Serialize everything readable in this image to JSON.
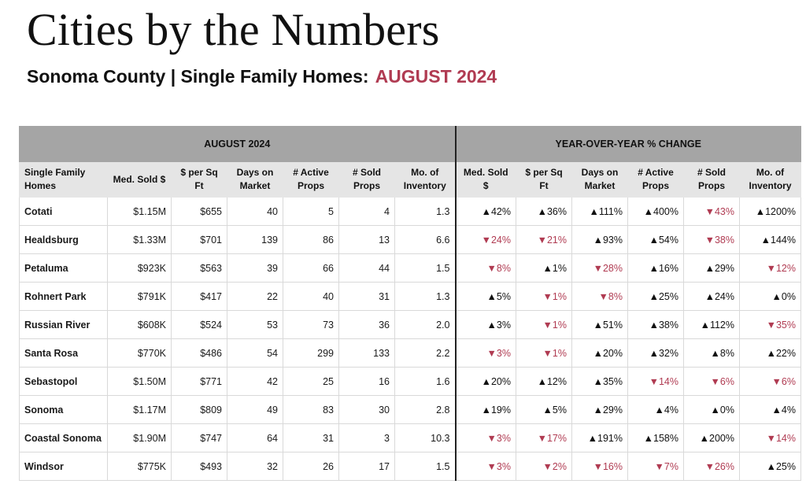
{
  "header": {
    "title": "Cities by the Numbers",
    "subtitle_main": "Sonoma County | Single Family Homes:",
    "subtitle_period": "AUGUST 2024"
  },
  "table": {
    "group_headers": [
      "AUGUST 2024",
      "YEAR-OVER-YEAR % CHANGE"
    ],
    "columns": [
      "Single Family Homes",
      "Med. Sold $",
      "$ per Sq Ft",
      "Days on Market",
      "# Active Props",
      "# Sold Props",
      "Mo. of Inventory",
      "Med. Sold $",
      "$ per Sq Ft",
      "Days on Market",
      "# Active Props",
      "# Sold Props",
      "Mo. of Inventory"
    ],
    "colors": {
      "up": "#111111",
      "down": "#b03b52",
      "group_bg": "#a5a5a5",
      "header_bg": "#e5e5e5"
    },
    "rows": [
      {
        "city": "Cotati",
        "values": [
          "$1.15M",
          "$655",
          "40",
          "5",
          "4",
          "1.3"
        ],
        "yoy": [
          [
            "▲",
            "42%"
          ],
          [
            "▲",
            "36%"
          ],
          [
            "▲",
            "111%"
          ],
          [
            "▲",
            "400%"
          ],
          [
            "▼",
            "43%"
          ],
          [
            "▲",
            "1200%"
          ]
        ]
      },
      {
        "city": "Healdsburg",
        "values": [
          "$1.33M",
          "$701",
          "139",
          "86",
          "13",
          "6.6"
        ],
        "yoy": [
          [
            "▼",
            "24%"
          ],
          [
            "▼",
            "21%"
          ],
          [
            "▲",
            "93%"
          ],
          [
            "▲",
            "54%"
          ],
          [
            "▼",
            "38%"
          ],
          [
            "▲",
            "144%"
          ]
        ]
      },
      {
        "city": "Petaluma",
        "values": [
          "$923K",
          "$563",
          "39",
          "66",
          "44",
          "1.5"
        ],
        "yoy": [
          [
            "▼",
            "8%"
          ],
          [
            "▲",
            "1%"
          ],
          [
            "▼",
            "28%"
          ],
          [
            "▲",
            "16%"
          ],
          [
            "▲",
            "29%"
          ],
          [
            "▼",
            "12%"
          ]
        ]
      },
      {
        "city": "Rohnert Park",
        "values": [
          "$791K",
          "$417",
          "22",
          "40",
          "31",
          "1.3"
        ],
        "yoy": [
          [
            "▲",
            "5%"
          ],
          [
            "▼",
            "1%"
          ],
          [
            "▼",
            "8%"
          ],
          [
            "▲",
            "25%"
          ],
          [
            "▲",
            "24%"
          ],
          [
            "▲",
            "0%"
          ]
        ]
      },
      {
        "city": "Russian River",
        "values": [
          "$608K",
          "$524",
          "53",
          "73",
          "36",
          "2.0"
        ],
        "yoy": [
          [
            "▲",
            "3%"
          ],
          [
            "▼",
            "1%"
          ],
          [
            "▲",
            "51%"
          ],
          [
            "▲",
            "38%"
          ],
          [
            "▲",
            "112%"
          ],
          [
            "▼",
            "35%"
          ]
        ]
      },
      {
        "city": "Santa Rosa",
        "values": [
          "$770K",
          "$486",
          "54",
          "299",
          "133",
          "2.2"
        ],
        "yoy": [
          [
            "▼",
            "3%"
          ],
          [
            "▼",
            "1%"
          ],
          [
            "▲",
            "20%"
          ],
          [
            "▲",
            "32%"
          ],
          [
            "▲",
            "8%"
          ],
          [
            "▲",
            "22%"
          ]
        ]
      },
      {
        "city": "Sebastopol",
        "values": [
          "$1.50M",
          "$771",
          "42",
          "25",
          "16",
          "1.6"
        ],
        "yoy": [
          [
            "▲",
            "20%"
          ],
          [
            "▲",
            "12%"
          ],
          [
            "▲",
            "35%"
          ],
          [
            "▼",
            "14%"
          ],
          [
            "▼",
            "6%"
          ],
          [
            "▼",
            "6%"
          ]
        ]
      },
      {
        "city": "Sonoma",
        "values": [
          "$1.17M",
          "$809",
          "49",
          "83",
          "30",
          "2.8"
        ],
        "yoy": [
          [
            "▲",
            "19%"
          ],
          [
            "▲",
            "5%"
          ],
          [
            "▲",
            "29%"
          ],
          [
            "▲",
            "4%"
          ],
          [
            "▲",
            "0%"
          ],
          [
            "▲",
            "4%"
          ]
        ]
      },
      {
        "city": "Coastal Sonoma",
        "values": [
          "$1.90M",
          "$747",
          "64",
          "31",
          "3",
          "10.3"
        ],
        "yoy": [
          [
            "▼",
            "3%"
          ],
          [
            "▼",
            "17%"
          ],
          [
            "▲",
            "191%"
          ],
          [
            "▲",
            "158%"
          ],
          [
            "▲",
            "200%"
          ],
          [
            "▼",
            "14%"
          ]
        ]
      },
      {
        "city": "Windsor",
        "values": [
          "$775K",
          "$493",
          "32",
          "26",
          "17",
          "1.5"
        ],
        "yoy": [
          [
            "▼",
            "3%"
          ],
          [
            "▼",
            "2%"
          ],
          [
            "▼",
            "16%"
          ],
          [
            "▼",
            "7%"
          ],
          [
            "▼",
            "26%"
          ],
          [
            "▲",
            "25%"
          ]
        ]
      }
    ]
  }
}
